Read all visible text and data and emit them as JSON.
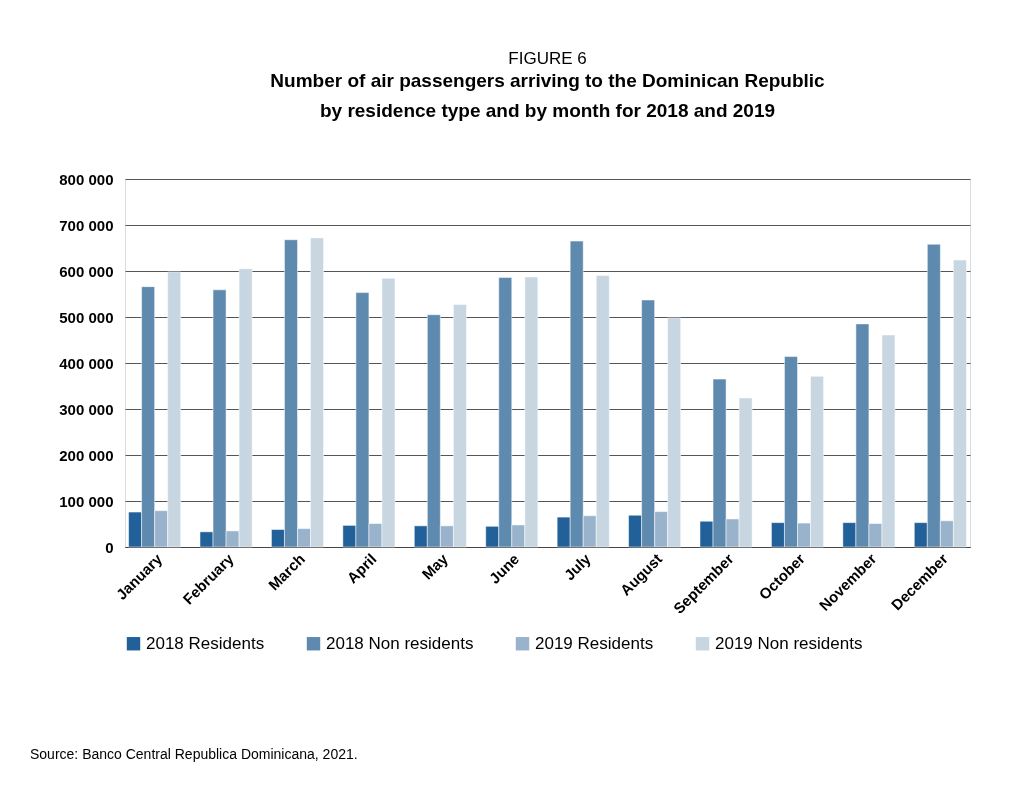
{
  "chart_data": {
    "type": "bar",
    "title": "FIGURE 6",
    "subtitle": "Number of air passengers arriving to the Dominican Republic\nby residence type and by month for 2018 and 2019",
    "categories": [
      "January",
      "February",
      "March",
      "April",
      "May",
      "June",
      "July",
      "August",
      "September",
      "October",
      "November",
      "December"
    ],
    "series": [
      {
        "name": "2018 Residents",
        "color": "#22609a",
        "values": [
          76000,
          33000,
          38000,
          47000,
          46000,
          45000,
          65000,
          69000,
          56000,
          53000,
          53000,
          53000
        ]
      },
      {
        "name": "2018 Non residents",
        "color": "#5f8aaf",
        "values": [
          566000,
          559000,
          668000,
          553000,
          505000,
          586000,
          665000,
          537000,
          365000,
          414000,
          485000,
          658000
        ]
      },
      {
        "name": "2019 Residents",
        "color": "#9ab3cc",
        "values": [
          79000,
          35000,
          40000,
          51000,
          46000,
          48000,
          68000,
          77000,
          61000,
          52000,
          51000,
          57000
        ]
      },
      {
        "name": "2019 Non residents",
        "color": "#c8d6e2",
        "values": [
          598000,
          605000,
          672000,
          584000,
          527000,
          587000,
          590000,
          498000,
          324000,
          371000,
          461000,
          624000
        ]
      }
    ],
    "ylim": [
      0,
      800000
    ],
    "yticks": [
      {
        "value": 0,
        "label": "0"
      },
      {
        "value": 100000,
        "label": "100 000"
      },
      {
        "value": 200000,
        "label": "200 000"
      },
      {
        "value": 300000,
        "label": "300 000"
      },
      {
        "value": 400000,
        "label": "400 000"
      },
      {
        "value": 500000,
        "label": "500 000"
      },
      {
        "value": 600000,
        "label": "600 000"
      },
      {
        "value": 700000,
        "label": "700 000"
      },
      {
        "value": 800000,
        "label": "800 000"
      }
    ],
    "grid": "y",
    "legend": "bottom",
    "annotations": [
      "Source: Banco Central Republica Dominicana, 2021."
    ]
  }
}
